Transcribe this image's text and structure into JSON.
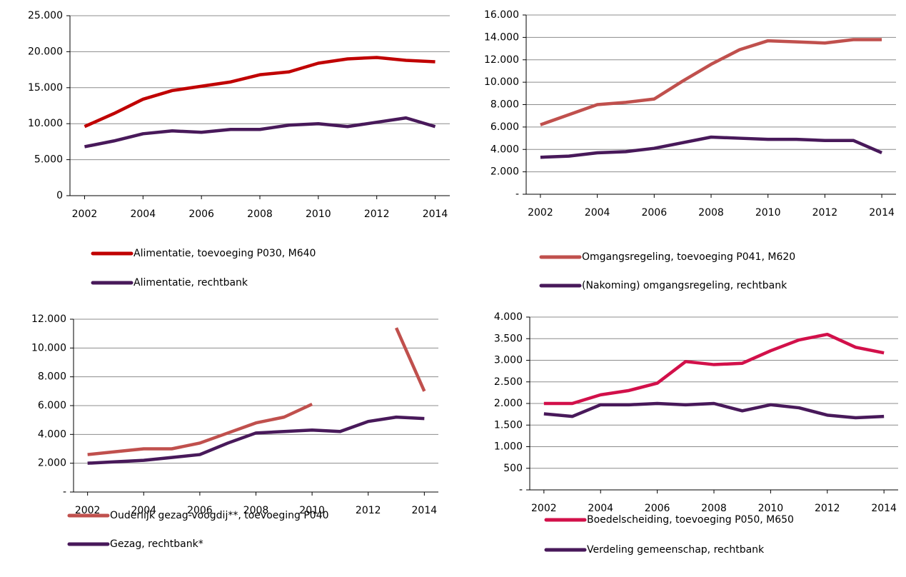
{
  "chart_data": [
    {
      "type": "line",
      "x": [
        2002,
        2003,
        2004,
        2005,
        2006,
        2007,
        2008,
        2009,
        2010,
        2011,
        2012,
        2013,
        2014
      ],
      "xlim": [
        2001.5,
        2014.5
      ],
      "xticks": [
        2002,
        2004,
        2006,
        2008,
        2010,
        2012,
        2014
      ],
      "ylim": [
        0,
        25000
      ],
      "yticks": [
        0,
        {
          "value": 5000,
          "label": "5.000"
        },
        {
          "value": 10000,
          "label": "10.000"
        },
        {
          "value": 15000,
          "label": "15.000"
        },
        {
          "value": 20000,
          "label": "20.000"
        },
        {
          "value": 25000,
          "label": "25.000"
        }
      ],
      "grid": true,
      "legend": "bottom",
      "series": [
        {
          "name": "Alimentatie, toevoeging P030, M640",
          "color": "#c00000",
          "values": [
            9600,
            11400,
            13400,
            14600,
            15200,
            15800,
            16800,
            17200,
            18400,
            19000,
            19200,
            18800,
            18600
          ]
        },
        {
          "name": "Alimentatie, rechtbank",
          "color": "#48195a",
          "values": [
            6800,
            7600,
            8600,
            9000,
            8800,
            9200,
            9200,
            9800,
            10000,
            9600,
            10200,
            10800,
            9600
          ]
        }
      ]
    },
    {
      "type": "line",
      "x": [
        2002,
        2003,
        2004,
        2005,
        2006,
        2007,
        2008,
        2009,
        2010,
        2011,
        2012,
        2013,
        2014
      ],
      "xlim": [
        2001.5,
        2014.5
      ],
      "xticks": [
        2002,
        2004,
        2006,
        2008,
        2010,
        2012,
        2014
      ],
      "ylim": [
        0,
        16000
      ],
      "yticks": [
        {
          "value": 0,
          "label": "-"
        },
        {
          "value": 2000,
          "label": "2.000"
        },
        {
          "value": 4000,
          "label": "4.000"
        },
        {
          "value": 6000,
          "label": "6.000"
        },
        {
          "value": 8000,
          "label": "8.000"
        },
        {
          "value": 10000,
          "label": "10.000"
        },
        {
          "value": 12000,
          "label": "12.000"
        },
        {
          "value": 14000,
          "label": "14.000"
        },
        {
          "value": 16000,
          "label": "16.000"
        }
      ],
      "grid": true,
      "legend": "bottom",
      "series": [
        {
          "name": "Omgangsregeling, toevoeging P041, M620",
          "color": "#c0504d",
          "values": [
            6200,
            7100,
            8000,
            8200,
            8500,
            10100,
            11600,
            12900,
            13700,
            13600,
            13500,
            13800,
            13800
          ]
        },
        {
          "name": "(Nakoming) omgangsregeling, rechtbank",
          "color": "#48195a",
          "values": [
            3300,
            3400,
            3700,
            3800,
            4100,
            4600,
            5100,
            5000,
            4900,
            4900,
            4800,
            4800,
            3700
          ]
        }
      ]
    },
    {
      "type": "line",
      "x": [
        2002,
        2003,
        2004,
        2005,
        2006,
        2007,
        2008,
        2009,
        2010,
        2011,
        2012,
        2013,
        2014
      ],
      "xlim": [
        2001.5,
        2014.5
      ],
      "xticks": [
        2002,
        2004,
        2006,
        2008,
        2010,
        2012,
        2014
      ],
      "ylim": [
        0,
        12000
      ],
      "yticks": [
        {
          "value": 0,
          "label": "-"
        },
        {
          "value": 2000,
          "label": "2.000"
        },
        {
          "value": 4000,
          "label": "4.000"
        },
        {
          "value": 6000,
          "label": "6.000"
        },
        {
          "value": 8000,
          "label": "8.000"
        },
        {
          "value": 10000,
          "label": "10.000"
        },
        {
          "value": 12000,
          "label": "12.000"
        }
      ],
      "grid": true,
      "legend": "bottom",
      "series": [
        {
          "name": "Ouderlijk gezag-voogdij**, toevoeging P040",
          "color": "#c0504d",
          "values": [
            2600,
            2800,
            3000,
            3000,
            3400,
            4100,
            4800,
            5200,
            6100,
            null,
            null,
            11400,
            7000
          ]
        },
        {
          "name": "Gezag, rechtbank*",
          "color": "#48195a",
          "values": [
            2000,
            2100,
            2200,
            2400,
            2600,
            3400,
            4100,
            4200,
            4300,
            4200,
            4900,
            5200,
            5100
          ]
        }
      ]
    },
    {
      "type": "line",
      "x": [
        2002,
        2003,
        2004,
        2005,
        2006,
        2007,
        2008,
        2009,
        2010,
        2011,
        2012,
        2013,
        2014
      ],
      "xlim": [
        2001.5,
        2014.5
      ],
      "xticks": [
        2002,
        2004,
        2006,
        2008,
        2010,
        2012,
        2014
      ],
      "ylim": [
        0,
        4000
      ],
      "yticks": [
        {
          "value": 0,
          "label": "-"
        },
        500,
        {
          "value": 1000,
          "label": "1.000"
        },
        {
          "value": 1500,
          "label": "1.500"
        },
        {
          "value": 2000,
          "label": "2.000"
        },
        {
          "value": 2500,
          "label": "2.500"
        },
        {
          "value": 3000,
          "label": "3.000"
        },
        {
          "value": 3500,
          "label": "3.500"
        },
        {
          "value": 4000,
          "label": "4.000"
        }
      ],
      "grid": true,
      "legend": "bottom",
      "series": [
        {
          "name": "Boedelscheiding, toevoeging P050, M650",
          "color": "#d2104a",
          "values": [
            2000,
            2000,
            2200,
            2300,
            2470,
            2970,
            2900,
            2930,
            3220,
            3470,
            3600,
            3300,
            3170
          ]
        },
        {
          "name": "Verdeling gemeenschap, rechtbank",
          "color": "#48195a",
          "values": [
            1760,
            1700,
            1970,
            1970,
            2000,
            1970,
            2000,
            1830,
            1970,
            1900,
            1730,
            1670,
            1700
          ]
        }
      ]
    }
  ]
}
